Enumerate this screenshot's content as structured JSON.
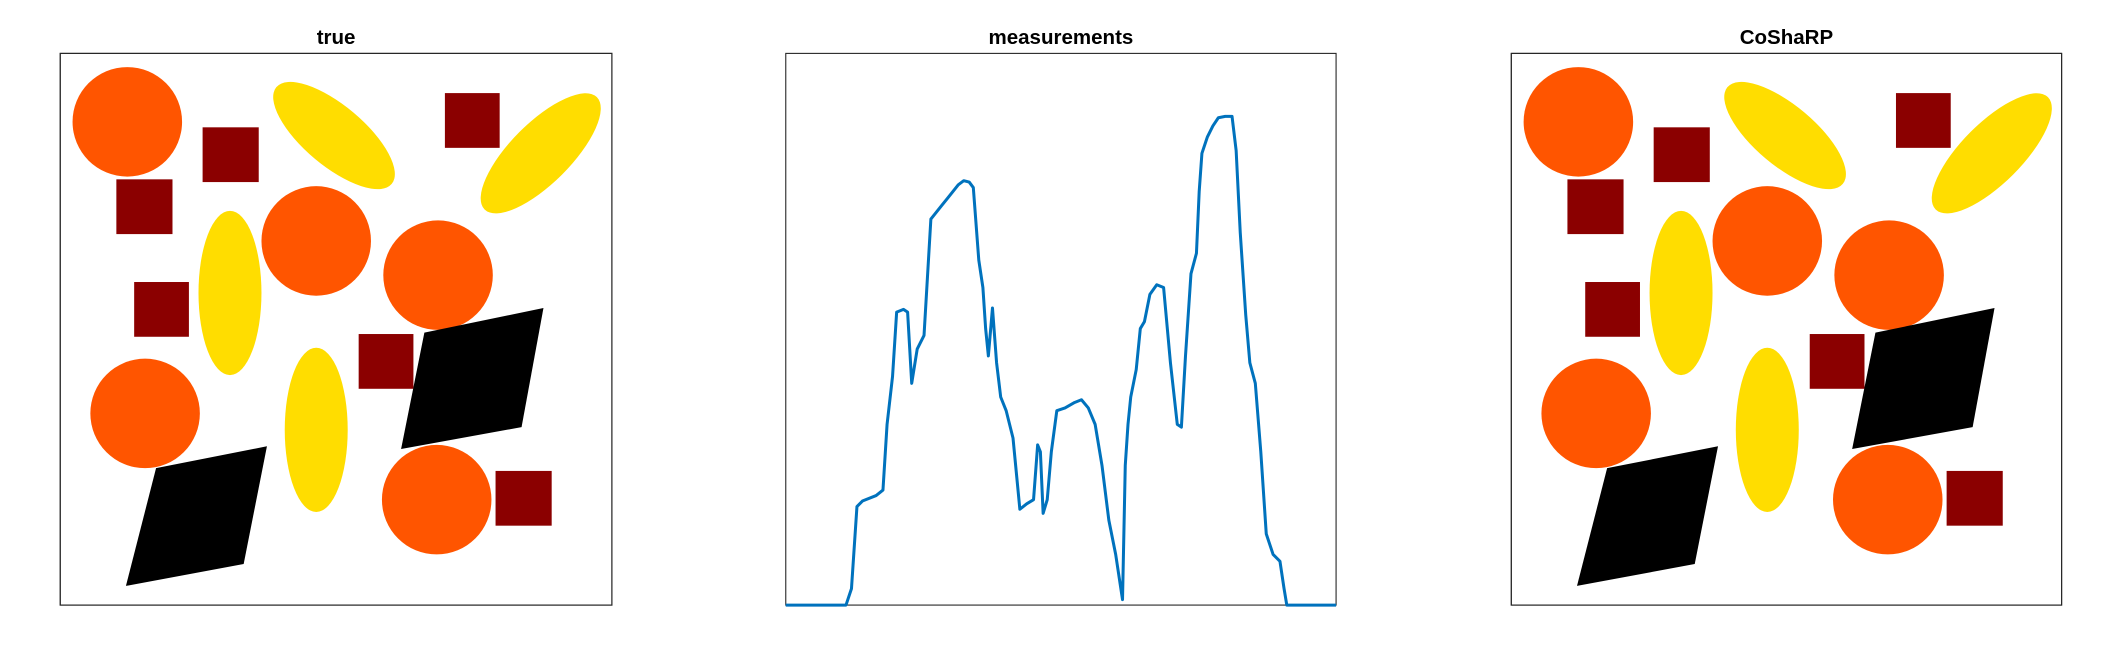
{
  "chart_data": [
    {
      "type": "image",
      "title": "true"
    },
    {
      "type": "line",
      "title": "measurements",
      "color": "#0072bd",
      "xlim": [
        0,
        402
      ],
      "ylim": [
        0,
        403
      ],
      "x": [
        0,
        44,
        48,
        52,
        56,
        66,
        71,
        74,
        78,
        81,
        86,
        89,
        92,
        96,
        101,
        106,
        110,
        114,
        118,
        122,
        126,
        130,
        134,
        137,
        141,
        144,
        146,
        148,
        151,
        154,
        157,
        161,
        166,
        171,
        176,
        181,
        184,
        186,
        188,
        191,
        194,
        198,
        204,
        211,
        216,
        221,
        226,
        231,
        236,
        241,
        246,
        248,
        250,
        252,
        256,
        259,
        262,
        266,
        271,
        276,
        281,
        286,
        289,
        292,
        296,
        300,
        302,
        304,
        308,
        312,
        316,
        321,
        326,
        329,
        332,
        336,
        339,
        343,
        347,
        351,
        356,
        361,
        364,
        366,
        402
      ],
      "values": [
        0,
        0,
        12,
        72,
        76,
        80,
        84,
        132,
        167,
        214,
        216,
        214,
        162,
        187,
        197,
        282,
        287,
        292,
        297,
        302,
        307,
        310,
        309,
        305,
        252,
        232,
        202,
        182,
        217,
        177,
        152,
        142,
        122,
        70,
        74,
        77,
        117,
        112,
        67,
        77,
        112,
        142,
        144,
        148,
        150,
        144,
        132,
        102,
        62,
        37,
        4,
        102,
        132,
        152,
        172,
        202,
        207,
        227,
        234,
        232,
        177,
        132,
        130,
        182,
        242,
        257,
        302,
        330,
        342,
        350,
        356,
        357,
        357,
        332,
        272,
        212,
        177,
        162,
        112,
        52,
        37,
        32,
        12,
        0,
        0
      ]
    },
    {
      "type": "image",
      "title": "CoShaRP"
    }
  ]
}
